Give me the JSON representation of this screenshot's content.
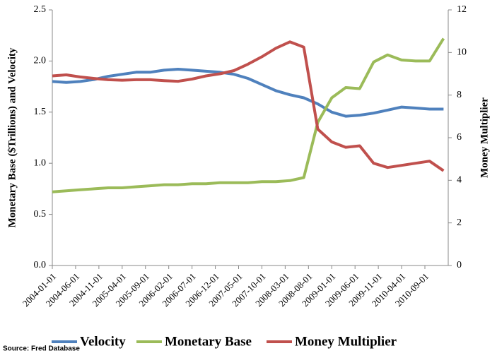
{
  "chart_data": {
    "type": "line",
    "y_label": "Monetary Base ($Trillions) and Velocity",
    "y2_label": "Money Multiplier",
    "source": "Source:  Fred  Database",
    "x": [
      "2004-01-01",
      "2004-04-01",
      "2004-07-01",
      "2004-10-01",
      "2005-01-01",
      "2005-04-01",
      "2005-07-01",
      "2005-10-01",
      "2006-01-01",
      "2006-04-01",
      "2006-07-01",
      "2006-10-01",
      "2007-01-01",
      "2007-04-01",
      "2007-07-01",
      "2007-10-01",
      "2008-01-01",
      "2008-04-01",
      "2008-07-01",
      "2008-10-01",
      "2009-01-01",
      "2009-04-01",
      "2009-07-01",
      "2009-10-01",
      "2010-01-01",
      "2010-04-01",
      "2010-07-01",
      "2010-10-01",
      "2011-01-01"
    ],
    "xticks": [
      "2004-01-01",
      "2004-06-01",
      "2004-11-01",
      "2005-04-01",
      "2005-09-01",
      "2006-02-01",
      "2006-07-01",
      "2006-12-01",
      "2007-05-01",
      "2007-10-01",
      "2008-03-01",
      "2008-08-01",
      "2009-01-01",
      "2009-06-01",
      "2009-11-01",
      "2010-04-01",
      "2010-09-01"
    ],
    "ylim": [
      0,
      2.5
    ],
    "yticks": [
      {
        "value": 0,
        "label": "0.0"
      },
      0.5,
      {
        "value": 1,
        "label": "1.0"
      },
      1.5,
      {
        "value": 2,
        "label": "2.0"
      },
      2.5
    ],
    "y2lim": [
      0,
      12
    ],
    "y2ticks": [
      0,
      2,
      4,
      6,
      8,
      10,
      12
    ],
    "legend": "bottom",
    "series": [
      {
        "name": "Velocity",
        "color": "#4f81bd",
        "values": [
          1.8,
          1.79,
          1.8,
          1.82,
          1.85,
          1.87,
          1.89,
          1.89,
          1.91,
          1.92,
          1.91,
          1.9,
          1.89,
          1.87,
          1.83,
          1.77,
          1.71,
          1.67,
          1.64,
          1.58,
          1.5,
          1.46,
          1.47,
          1.49,
          1.52,
          1.55,
          1.54,
          1.53,
          1.53
        ]
      },
      {
        "name": "Monetary Base",
        "color": "#9bbb59",
        "values": [
          0.72,
          0.73,
          0.74,
          0.75,
          0.76,
          0.76,
          0.77,
          0.78,
          0.79,
          0.79,
          0.8,
          0.8,
          0.81,
          0.81,
          0.81,
          0.82,
          0.82,
          0.83,
          0.86,
          1.4,
          1.64,
          1.74,
          1.73,
          1.99,
          2.06,
          2.01,
          2.0,
          2.0,
          2.22
        ]
      },
      {
        "name": "Money Multiplier",
        "color": "#c0504d",
        "axis": "y2",
        "values": [
          8.9,
          8.95,
          8.85,
          8.78,
          8.72,
          8.7,
          8.72,
          8.72,
          8.68,
          8.65,
          8.75,
          8.9,
          9.0,
          9.15,
          9.45,
          9.8,
          10.2,
          10.5,
          10.25,
          6.4,
          5.8,
          5.55,
          5.62,
          4.8,
          4.6,
          4.7,
          4.8,
          4.9,
          4.45
        ]
      }
    ]
  }
}
